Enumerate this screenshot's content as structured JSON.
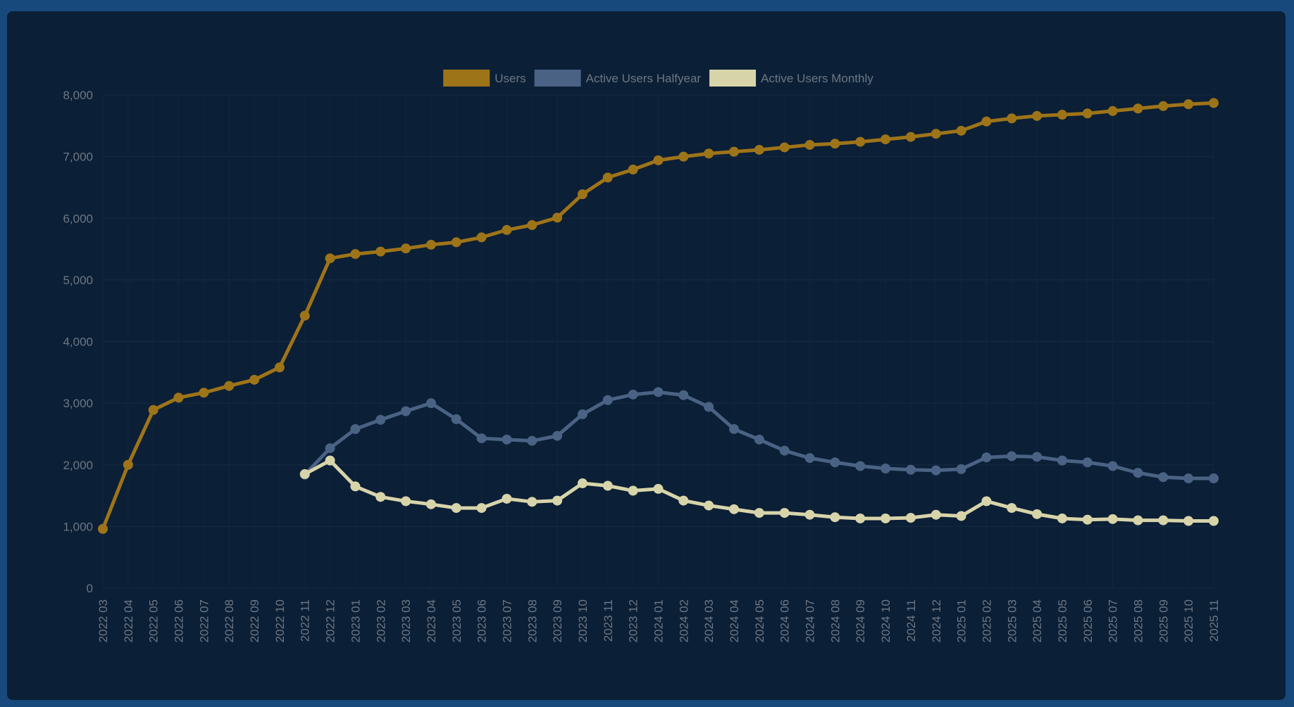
{
  "chart_data": {
    "type": "line",
    "title": "",
    "xlabel": "",
    "ylabel": "",
    "ylim": [
      0,
      8000
    ],
    "ytick_values": [
      0,
      1000,
      2000,
      3000,
      4000,
      5000,
      6000,
      7000,
      8000
    ],
    "ytick_labels": [
      "0",
      "1,000",
      "2,000",
      "3,000",
      "4,000",
      "5,000",
      "6,000",
      "7,000",
      "8,000"
    ],
    "grid": true,
    "legend_position": "top-center",
    "categories": [
      "2022 03",
      "2022 04",
      "2022 05",
      "2022 06",
      "2022 07",
      "2022 08",
      "2022 09",
      "2022 10",
      "2022 11",
      "2022 12",
      "2023 01",
      "2023 02",
      "2023 03",
      "2023 04",
      "2023 05",
      "2023 06",
      "2023 07",
      "2023 08",
      "2023 09",
      "2023 10",
      "2023 11",
      "2023 12",
      "2024 01",
      "2024 02",
      "2024 03",
      "2024 04",
      "2024 05",
      "2024 06",
      "2024 07",
      "2024 08",
      "2024 09",
      "2024 10",
      "2024 11",
      "2024 12",
      "2025 01",
      "2025 02",
      "2025 03",
      "2025 04",
      "2025 05",
      "2025 06",
      "2025 07",
      "2025 08",
      "2025 09",
      "2025 10",
      "2025 11"
    ],
    "series": [
      {
        "name": "Users",
        "color": "#9e7419",
        "values": [
          960,
          2000,
          2890,
          3090,
          3170,
          3280,
          3380,
          3580,
          4420,
          5350,
          5420,
          5460,
          5510,
          5570,
          5610,
          5690,
          5810,
          5890,
          6010,
          6390,
          6660,
          6790,
          6940,
          7000,
          7050,
          7080,
          7110,
          7150,
          7190,
          7210,
          7240,
          7280,
          7320,
          7370,
          7420,
          7570,
          7620,
          7660,
          7680,
          7700,
          7740,
          7780,
          7820,
          7850,
          7870
        ]
      },
      {
        "name": "Active Users Halfyear",
        "color": "#4a6283",
        "values": [
          null,
          null,
          null,
          null,
          null,
          null,
          null,
          null,
          1840,
          2270,
          2580,
          2730,
          2870,
          3000,
          2740,
          2430,
          2410,
          2390,
          2470,
          2820,
          3050,
          3140,
          3180,
          3130,
          2940,
          2580,
          2410,
          2230,
          2110,
          2040,
          1980,
          1940,
          1920,
          1910,
          1930,
          2120,
          2140,
          2130,
          2070,
          2040,
          1980,
          1870,
          1800,
          1780,
          1780
        ]
      },
      {
        "name": "Active Users Monthly",
        "color": "#d8d4aa",
        "values": [
          null,
          null,
          null,
          null,
          null,
          null,
          null,
          null,
          1850,
          2070,
          1650,
          1480,
          1410,
          1360,
          1300,
          1300,
          1450,
          1400,
          1420,
          1700,
          1660,
          1580,
          1610,
          1420,
          1340,
          1280,
          1220,
          1220,
          1190,
          1150,
          1130,
          1130,
          1140,
          1190,
          1170,
          1410,
          1300,
          1200,
          1130,
          1110,
          1120,
          1100,
          1100,
          1090,
          1090
        ]
      }
    ]
  }
}
